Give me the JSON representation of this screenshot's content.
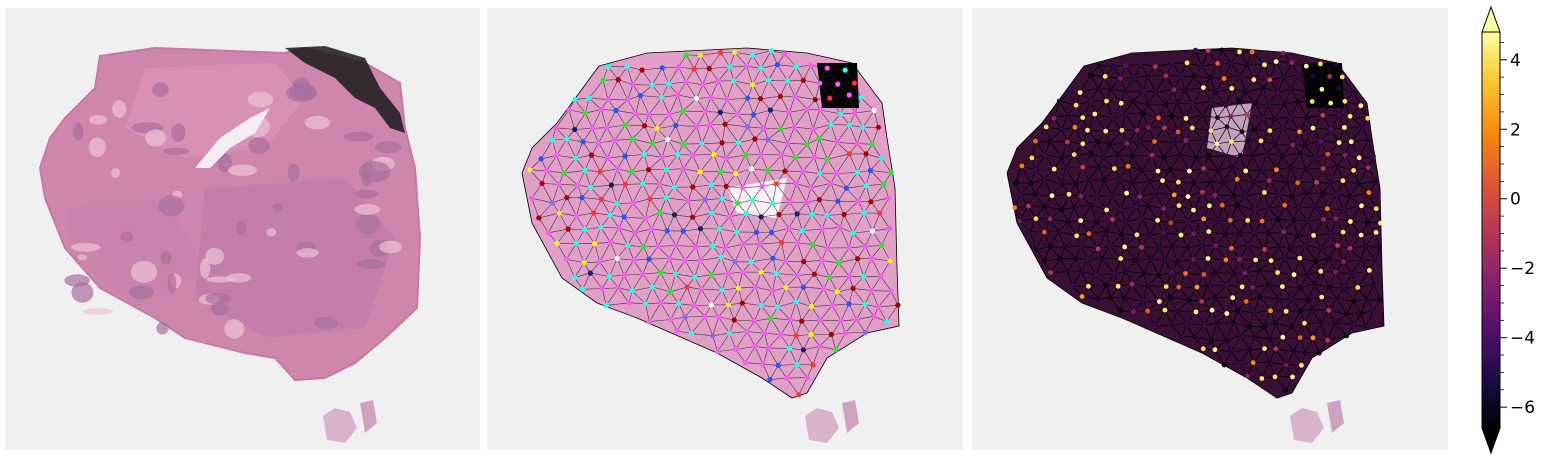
{
  "panels": [
    {
      "id": "he-slide",
      "kind": "H&E whole-slide tissue image"
    },
    {
      "id": "cluster-graph",
      "kind": "Delaunay graph of patches colored by cluster"
    },
    {
      "id": "score-graph",
      "kind": "Delaunay graph of patches colored by score"
    }
  ],
  "colorbar": {
    "colormap": "inferno",
    "ticks": [
      "4",
      "2",
      "0",
      "−2",
      "−4",
      "−6"
    ],
    "tick_values": [
      4,
      2,
      0,
      -2,
      -4,
      -6
    ],
    "range": [
      -6.6,
      4.8
    ],
    "extend": "both"
  },
  "colors": {
    "background": "#f0f0f0",
    "tissue_pink": "#d98fb4",
    "edge": "#000000",
    "cluster_palette": [
      "#ff55ff",
      "#22ffee",
      "#ffee22",
      "#2255ff",
      "#aa0000",
      "#22ee22",
      "#ff3333",
      "#ffffff",
      "#8866ff",
      "#1a1a70"
    ]
  }
}
